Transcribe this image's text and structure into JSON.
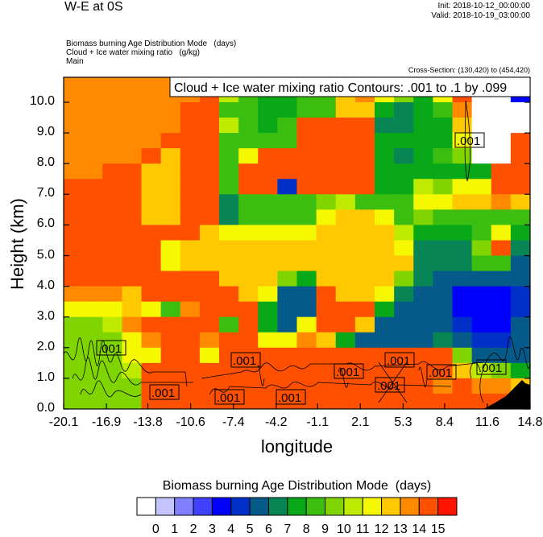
{
  "header": {
    "title": "W-E at 0S",
    "init": "Init: 2018-10-12_00:00:00",
    "valid": "Valid: 2018-10-19_03:00:00",
    "fields": [
      "Biomass burning Age Distribution Mode   (days)",
      "Cloud + Ice water mixing ratio   (g/kg)",
      "Main"
    ],
    "cross_section": "Cross-Section: (130,420) to (454,420)"
  },
  "chart_data": {
    "type": "heatmap",
    "title": "Cloud + Ice water mixing ratio Contours: .001 to .1 by .099",
    "xlabel": "longitude",
    "ylabel": "Height (km)",
    "xlim": [
      -20.1,
      14.8
    ],
    "ylim": [
      0,
      10.8
    ],
    "xticks": [
      "-20.1",
      "-16.9",
      "-13.8",
      "-10.6",
      "-7.4",
      "-4.2",
      "-1.1",
      "2.1",
      "5.3",
      "8.4",
      "11.6",
      "14.8"
    ],
    "yticks": [
      "0.0",
      "1.0",
      "2.0",
      "3.0",
      "4.0",
      "5.0",
      "6.0",
      "7.0",
      "8.0",
      "9.0",
      "10.0"
    ],
    "grid_note": "rows top (10.5-11 km) to bottom (0-0.5 km), 24 longitude columns; each char is a color-bin index 0-16 (hex-like, G=16)",
    "grid": [
      "EEEEEEEFF9889ACEDC9DF89F",
      "EEEEEEEFB98899DECA8CF004",
      "EEEEEEFF998899DD8789E000",
      "EEEEEEFFB989FFFF7788D000",
      "EEEEEFFF9999FFFF8888C00F",
      "EEEEFDFF9CFFFFFF8789A00F",
      "EEFFDDFF9FFFFFFF888888FF",
      "FFFFDDFF9FF5FFFF88BACCFF",
      "FFFFDDFF79999AB999CCDDED",
      "FFFFDDFF79999CDDC9A99999",
      "FFFFFFFDCCCCCDDDDB8889C8",
      "FFFFFCDDDDDDDDDDDC777AF7",
      "FFFFFCDDDDDDDDDDDD777996",
      "FFFFFFFFDDDA8DDDDA766666",
      "EEEDFFFFFDC66FDDC7664445",
      "CCCDC9EFFF866FFF86664445",
      "AABEFFFF9F86CFFD66665446",
      "AAACEFFEFFCCED8666676556",
      "AAACCFFCFFFFFFFFFFFFA666",
      "AAABFFFFFFFFFFFFFFFFDBA8",
      "AAAAFFFFFFFFFFFFFFFEFEED",
      "AAAAFFFFFFFFFFFFFFFFFFFF"
    ],
    "contour_level": ".001",
    "contour_labels": [
      ".001",
      ".001",
      ".001",
      ".001",
      ".001",
      ".001",
      ".001",
      ".001",
      ".001",
      ".001",
      ".001"
    ],
    "colorbar": {
      "title": "Biomass burning Age Distribution Mode  (days)",
      "labels": [
        "0",
        "1",
        "2",
        "3",
        "4",
        "5",
        "6",
        "7",
        "8",
        "9",
        "10",
        "11",
        "12",
        "13",
        "14",
        "15"
      ],
      "colors": [
        "#FFFFFF",
        "#C4C4FF",
        "#8080FF",
        "#4040FF",
        "#0000FF",
        "#0030C8",
        "#055A8A",
        "#088555",
        "#08A818",
        "#3CBE10",
        "#80D400",
        "#BEEA00",
        "#F5F800",
        "#FFC800",
        "#FF8A00",
        "#FF5000",
        "#FF1400"
      ]
    }
  }
}
